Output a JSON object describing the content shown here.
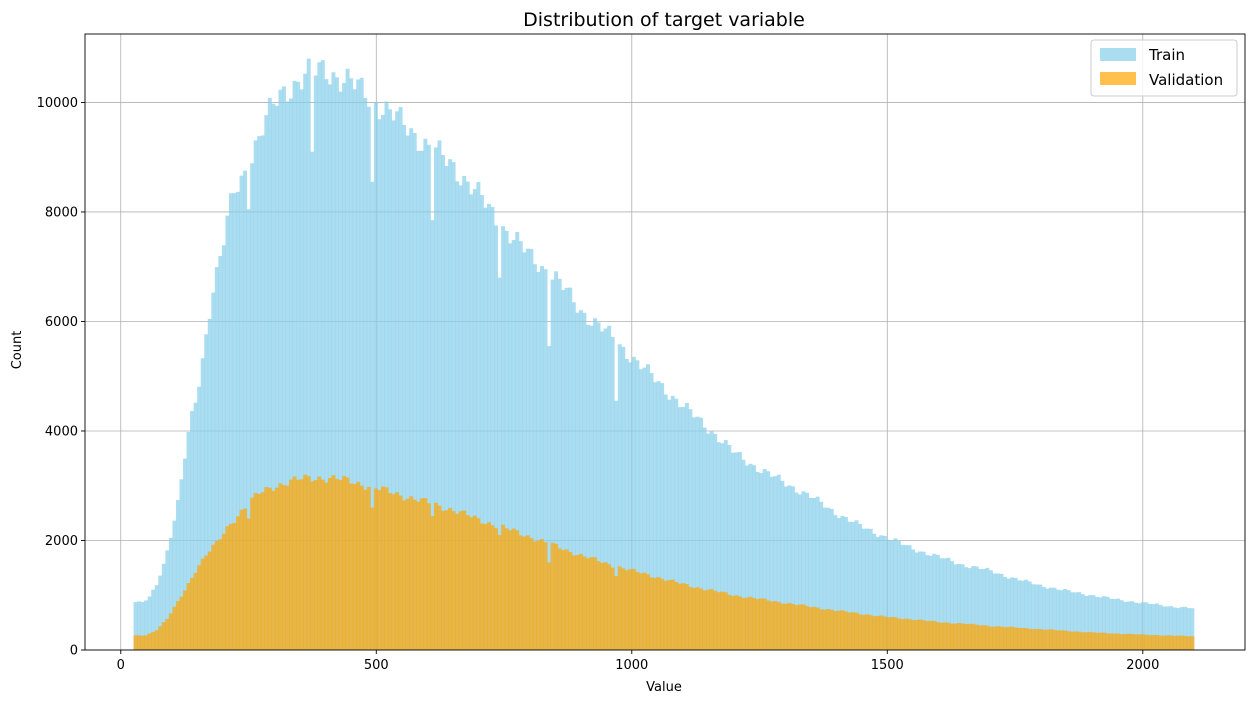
{
  "chart_data": {
    "type": "bar",
    "title": "Distribution of target variable",
    "xlabel": "Value",
    "ylabel": "Count",
    "xlim": [
      -70,
      2200
    ],
    "ylim": [
      0,
      11250
    ],
    "xticks": [
      0,
      500,
      1000,
      1500,
      2000
    ],
    "yticks": [
      0,
      2000,
      4000,
      6000,
      8000,
      10000
    ],
    "grid": true,
    "legend": "top-right",
    "bin_range": [
      25,
      2100
    ],
    "series": [
      {
        "name": "Train",
        "color": "#87CEEB",
        "opacity": 0.7,
        "profile": [
          [
            25,
            880
          ],
          [
            40,
            860
          ],
          [
            55,
            940
          ],
          [
            70,
            1200
          ],
          [
            85,
            1600
          ],
          [
            100,
            2200
          ],
          [
            110,
            2600
          ],
          [
            120,
            3200
          ],
          [
            130,
            3800
          ],
          [
            140,
            4300
          ],
          [
            150,
            4700
          ],
          [
            160,
            5300
          ],
          [
            170,
            6000
          ],
          [
            180,
            6600
          ],
          [
            190,
            7000
          ],
          [
            200,
            7400
          ],
          [
            210,
            7900
          ],
          [
            220,
            8300
          ],
          [
            240,
            8650
          ],
          [
            260,
            9150
          ],
          [
            280,
            9600
          ],
          [
            300,
            9950
          ],
          [
            320,
            10200
          ],
          [
            340,
            10350
          ],
          [
            360,
            10500
          ],
          [
            380,
            10550
          ],
          [
            400,
            10600
          ],
          [
            420,
            10500
          ],
          [
            450,
            10350
          ],
          [
            480,
            10150
          ],
          [
            520,
            9850
          ],
          [
            560,
            9550
          ],
          [
            600,
            9200
          ],
          [
            650,
            8850
          ],
          [
            700,
            8300
          ],
          [
            750,
            7700
          ],
          [
            800,
            7200
          ],
          [
            850,
            6800
          ],
          [
            900,
            6200
          ],
          [
            950,
            5800
          ],
          [
            1000,
            5350
          ],
          [
            1050,
            4900
          ],
          [
            1100,
            4450
          ],
          [
            1150,
            4050
          ],
          [
            1200,
            3600
          ],
          [
            1250,
            3300
          ],
          [
            1300,
            3050
          ],
          [
            1350,
            2800
          ],
          [
            1400,
            2500
          ],
          [
            1450,
            2250
          ],
          [
            1500,
            2050
          ],
          [
            1550,
            1850
          ],
          [
            1600,
            1700
          ],
          [
            1650,
            1550
          ],
          [
            1700,
            1450
          ],
          [
            1750,
            1300
          ],
          [
            1800,
            1180
          ],
          [
            1850,
            1080
          ],
          [
            1900,
            1000
          ],
          [
            1950,
            920
          ],
          [
            2000,
            860
          ],
          [
            2050,
            800
          ],
          [
            2100,
            760
          ]
        ],
        "dips": [
          [
            250,
            8050
          ],
          [
            375,
            9100
          ],
          [
            490,
            8550
          ],
          [
            610,
            7850
          ],
          [
            740,
            6800
          ],
          [
            840,
            5550
          ],
          [
            970,
            4550
          ]
        ]
      },
      {
        "name": "Validation",
        "color": "#FFA500",
        "opacity": 0.7,
        "profile": [
          [
            25,
            260
          ],
          [
            50,
            270
          ],
          [
            70,
            370
          ],
          [
            90,
            560
          ],
          [
            110,
            850
          ],
          [
            130,
            1170
          ],
          [
            150,
            1520
          ],
          [
            170,
            1780
          ],
          [
            190,
            1970
          ],
          [
            210,
            2250
          ],
          [
            230,
            2480
          ],
          [
            250,
            2680
          ],
          [
            270,
            2850
          ],
          [
            300,
            2990
          ],
          [
            330,
            3080
          ],
          [
            360,
            3130
          ],
          [
            390,
            3150
          ],
          [
            420,
            3130
          ],
          [
            450,
            3080
          ],
          [
            480,
            3010
          ],
          [
            520,
            2900
          ],
          [
            560,
            2800
          ],
          [
            600,
            2690
          ],
          [
            650,
            2560
          ],
          [
            700,
            2380
          ],
          [
            750,
            2230
          ],
          [
            800,
            2070
          ],
          [
            850,
            1900
          ],
          [
            900,
            1730
          ],
          [
            950,
            1580
          ],
          [
            1000,
            1450
          ],
          [
            1050,
            1330
          ],
          [
            1100,
            1200
          ],
          [
            1150,
            1100
          ],
          [
            1200,
            1000
          ],
          [
            1250,
            930
          ],
          [
            1300,
            860
          ],
          [
            1350,
            790
          ],
          [
            1400,
            720
          ],
          [
            1450,
            660
          ],
          [
            1500,
            600
          ],
          [
            1550,
            560
          ],
          [
            1600,
            510
          ],
          [
            1650,
            480
          ],
          [
            1700,
            440
          ],
          [
            1750,
            410
          ],
          [
            1800,
            380
          ],
          [
            1850,
            350
          ],
          [
            1900,
            320
          ],
          [
            1950,
            300
          ],
          [
            2000,
            280
          ],
          [
            2050,
            265
          ],
          [
            2100,
            250
          ]
        ],
        "dips": [
          [
            250,
            2400
          ],
          [
            490,
            2600
          ],
          [
            610,
            2450
          ],
          [
            740,
            2100
          ],
          [
            840,
            1600
          ],
          [
            970,
            1350
          ]
        ]
      }
    ]
  }
}
